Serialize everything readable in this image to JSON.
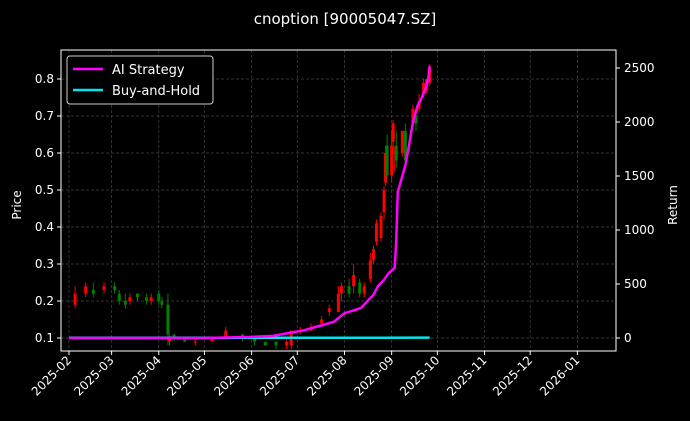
{
  "chart_data": {
    "type": "line",
    "title": "cnoption [90005047.SZ]",
    "ylabel": "Price",
    "y2label": "Return",
    "xlim": [
      "2025-01-27",
      "2026-02-05"
    ],
    "ylim": [
      0.07,
      0.88
    ],
    "y2lim": [
      -100,
      2630
    ],
    "xticks": [
      "2025-02",
      "2025-03",
      "2025-04",
      "2025-05",
      "2025-06",
      "2025-07",
      "2025-08",
      "2025-09",
      "2025-10",
      "2025-11",
      "2025-12",
      "2026-01"
    ],
    "yticks": [
      0.1,
      0.2,
      0.3,
      0.4,
      0.5,
      0.6,
      0.7,
      0.8
    ],
    "y2ticks": [
      0,
      500,
      1000,
      1500,
      2000,
      2500
    ],
    "grid": true,
    "legend_position": "top-left",
    "colors": {
      "up": "#ff0000",
      "down": "#008000",
      "strategy": "#ff00ff",
      "buyhold": "#00e5ee",
      "grid": "#444444"
    },
    "candles": [
      [
        "2025-02-05",
        0.19,
        0.22,
        0.18,
        0.24
      ],
      [
        "2025-02-12",
        0.22,
        0.24,
        0.21,
        0.25
      ],
      [
        "2025-02-17",
        0.23,
        0.22,
        0.21,
        0.25
      ],
      [
        "2025-02-24",
        0.23,
        0.24,
        0.22,
        0.25
      ],
      [
        "2025-03-03",
        0.24,
        0.23,
        0.22,
        0.25
      ],
      [
        "2025-03-06",
        0.22,
        0.2,
        0.19,
        0.23
      ],
      [
        "2025-03-10",
        0.2,
        0.19,
        0.18,
        0.22
      ],
      [
        "2025-03-13",
        0.2,
        0.21,
        0.19,
        0.22
      ],
      [
        "2025-03-18",
        0.22,
        0.21,
        0.2,
        0.22
      ],
      [
        "2025-03-24",
        0.21,
        0.2,
        0.19,
        0.22
      ],
      [
        "2025-03-27",
        0.2,
        0.21,
        0.19,
        0.22
      ],
      [
        "2025-04-01",
        0.22,
        0.2,
        0.19,
        0.23
      ],
      [
        "2025-04-03",
        0.2,
        0.19,
        0.18,
        0.21
      ],
      [
        "2025-04-07",
        0.19,
        0.11,
        0.08,
        0.22
      ],
      [
        "2025-04-08",
        0.09,
        0.1,
        0.08,
        0.11
      ],
      [
        "2025-04-11",
        0.11,
        0.1,
        0.09,
        0.11
      ],
      [
        "2025-04-18",
        0.1,
        0.09,
        0.09,
        0.1
      ],
      [
        "2025-04-25",
        0.09,
        0.09,
        0.08,
        0.1
      ],
      [
        "2025-05-06",
        0.09,
        0.1,
        0.09,
        0.1
      ],
      [
        "2025-05-15",
        0.1,
        0.12,
        0.1,
        0.13
      ],
      [
        "2025-05-26",
        0.11,
        0.1,
        0.09,
        0.11
      ],
      [
        "2025-06-03",
        0.1,
        0.09,
        0.08,
        0.1
      ],
      [
        "2025-06-10",
        0.09,
        0.08,
        0.08,
        0.09
      ],
      [
        "2025-06-17",
        0.09,
        0.08,
        0.07,
        0.09
      ],
      [
        "2025-06-24",
        0.08,
        0.09,
        0.07,
        0.1
      ],
      [
        "2025-06-27",
        0.08,
        0.12,
        0.07,
        0.12
      ],
      [
        "2025-07-03",
        0.12,
        0.12,
        0.11,
        0.13
      ],
      [
        "2025-07-10",
        0.12,
        0.13,
        0.12,
        0.14
      ],
      [
        "2025-07-17",
        0.14,
        0.15,
        0.13,
        0.16
      ],
      [
        "2025-07-22",
        0.17,
        0.18,
        0.16,
        0.19
      ],
      [
        "2025-07-28",
        0.17,
        0.22,
        0.17,
        0.24
      ],
      [
        "2025-07-30",
        0.22,
        0.24,
        0.2,
        0.25
      ],
      [
        "2025-08-04",
        0.24,
        0.22,
        0.21,
        0.26
      ],
      [
        "2025-08-07",
        0.24,
        0.27,
        0.22,
        0.3
      ],
      [
        "2025-08-11",
        0.25,
        0.22,
        0.21,
        0.26
      ],
      [
        "2025-08-14",
        0.22,
        0.24,
        0.21,
        0.25
      ],
      [
        "2025-08-18",
        0.26,
        0.31,
        0.25,
        0.33
      ],
      [
        "2025-08-20",
        0.31,
        0.34,
        0.3,
        0.35
      ],
      [
        "2025-08-22",
        0.36,
        0.41,
        0.35,
        0.42
      ],
      [
        "2025-08-25",
        0.37,
        0.43,
        0.36,
        0.44
      ],
      [
        "2025-08-27",
        0.44,
        0.5,
        0.42,
        0.51
      ],
      [
        "2025-08-28",
        0.52,
        0.6,
        0.51,
        0.62
      ],
      [
        "2025-08-29",
        0.62,
        0.54,
        0.53,
        0.65
      ],
      [
        "2025-09-01",
        0.54,
        0.62,
        0.52,
        0.66
      ],
      [
        "2025-09-02",
        0.63,
        0.68,
        0.6,
        0.69
      ],
      [
        "2025-09-03",
        0.6,
        0.6,
        0.55,
        0.62
      ],
      [
        "2025-09-04",
        0.62,
        0.58,
        0.56,
        0.66
      ],
      [
        "2025-09-08",
        0.6,
        0.66,
        0.59,
        0.66
      ],
      [
        "2025-09-10",
        0.66,
        0.58,
        0.57,
        0.68
      ],
      [
        "2025-09-15",
        0.68,
        0.72,
        0.67,
        0.73
      ],
      [
        "2025-09-17",
        0.7,
        0.68,
        0.66,
        0.71
      ],
      [
        "2025-09-19",
        0.72,
        0.74,
        0.71,
        0.76
      ],
      [
        "2025-09-22",
        0.76,
        0.79,
        0.75,
        0.8
      ],
      [
        "2025-09-24",
        0.77,
        0.8,
        0.76,
        0.8
      ],
      [
        "2025-09-26",
        0.79,
        0.83,
        0.78,
        0.84
      ]
    ],
    "series": [
      {
        "name": "AI Strategy",
        "x": [
          "2025-02-01",
          "2025-05-01",
          "2025-06-01",
          "2025-06-15",
          "2025-06-25",
          "2025-07-05",
          "2025-07-15",
          "2025-07-25",
          "2025-08-01",
          "2025-08-08",
          "2025-08-12",
          "2025-08-16",
          "2025-08-20",
          "2025-08-23",
          "2025-08-27",
          "2025-08-30",
          "2025-09-03",
          "2025-09-04",
          "2025-09-05",
          "2025-09-08",
          "2025-09-10",
          "2025-09-12",
          "2025-09-15",
          "2025-09-18",
          "2025-09-20",
          "2025-09-23",
          "2025-09-25",
          "2025-09-26"
        ],
        "values": [
          0,
          0,
          10,
          20,
          45,
          70,
          110,
          150,
          230,
          260,
          280,
          340,
          400,
          480,
          540,
          600,
          650,
          900,
          1350,
          1500,
          1600,
          1750,
          2000,
          2150,
          2200,
          2300,
          2400,
          2520
        ]
      },
      {
        "name": "Buy-and-Hold",
        "x": [
          "2025-02-01",
          "2025-09-26"
        ],
        "values": [
          2,
          3
        ]
      }
    ]
  }
}
